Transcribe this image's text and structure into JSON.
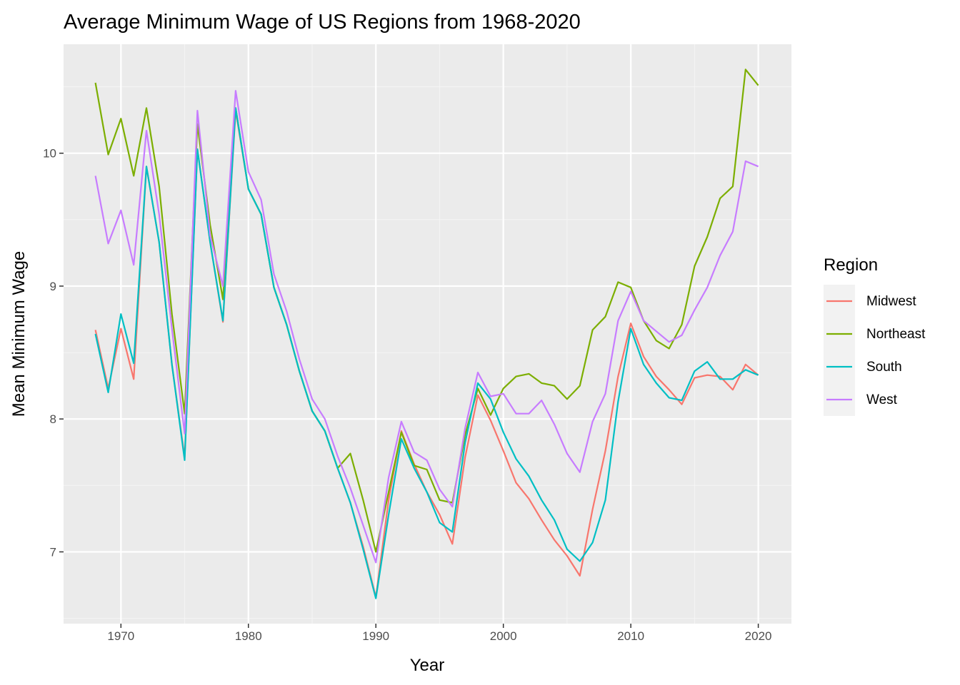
{
  "chart_data": {
    "type": "line",
    "title": "Average Minimum Wage of US Regions from 1968-2020",
    "xlabel": "Year",
    "ylabel": "Mean Minimum Wage",
    "xlim": [
      1965.5,
      2022.6
    ],
    "ylim": [
      6.46,
      10.82
    ],
    "x_ticks": [
      1970,
      1980,
      1990,
      2000,
      2010,
      2020
    ],
    "y_ticks": [
      7,
      8,
      9,
      10
    ],
    "grid": true,
    "legend": {
      "title": "Region",
      "placement": "right"
    },
    "x": [
      1968,
      1969,
      1970,
      1971,
      1972,
      1973,
      1974,
      1975,
      1976,
      1977,
      1978,
      1979,
      1980,
      1981,
      1982,
      1983,
      1984,
      1985,
      1986,
      1987,
      1988,
      1989,
      1990,
      1991,
      1992,
      1993,
      1994,
      1995,
      1996,
      1997,
      1998,
      1999,
      2000,
      2001,
      2002,
      2003,
      2004,
      2005,
      2006,
      2007,
      2008,
      2009,
      2010,
      2011,
      2012,
      2013,
      2014,
      2015,
      2016,
      2017,
      2018,
      2019,
      2020
    ],
    "series": [
      {
        "name": "Midwest",
        "color": "#F8766D",
        "values": [
          8.67,
          8.23,
          8.68,
          8.3,
          9.9,
          9.33,
          8.41,
          7.71,
          10.03,
          9.33,
          8.73,
          10.32,
          9.73,
          9.54,
          8.99,
          8.71,
          8.36,
          8.06,
          7.91,
          7.63,
          7.37,
          7.04,
          6.66,
          7.39,
          7.91,
          7.66,
          7.45,
          7.28,
          7.06,
          7.71,
          8.18,
          7.99,
          7.76,
          7.52,
          7.4,
          7.24,
          7.09,
          6.97,
          6.82,
          7.32,
          7.76,
          8.32,
          8.72,
          8.47,
          8.32,
          8.22,
          8.11,
          8.31,
          8.33,
          8.32,
          8.22,
          8.41,
          8.33
        ]
      },
      {
        "name": "Northeast",
        "color": "#7CAE00",
        "values": [
          10.53,
          9.99,
          10.26,
          9.83,
          10.34,
          9.75,
          8.79,
          8.04,
          10.22,
          9.46,
          8.9,
          10.34,
          9.73,
          9.54,
          8.99,
          8.71,
          8.36,
          8.06,
          7.91,
          7.63,
          7.74,
          7.39,
          7.0,
          7.45,
          7.9,
          7.65,
          7.62,
          7.39,
          7.37,
          7.88,
          8.23,
          8.03,
          8.23,
          8.32,
          8.34,
          8.27,
          8.25,
          8.15,
          8.25,
          8.67,
          8.77,
          9.03,
          8.99,
          8.74,
          8.59,
          8.53,
          8.71,
          9.15,
          9.37,
          9.66,
          9.75,
          10.63,
          10.51
        ]
      },
      {
        "name": "South",
        "color": "#00BFC4",
        "values": [
          8.64,
          8.2,
          8.79,
          8.42,
          9.9,
          9.33,
          8.41,
          7.69,
          10.03,
          9.33,
          8.74,
          10.34,
          9.73,
          9.54,
          8.99,
          8.71,
          8.36,
          8.06,
          7.91,
          7.63,
          7.37,
          7.02,
          6.65,
          7.28,
          7.85,
          7.63,
          7.45,
          7.22,
          7.15,
          7.82,
          8.27,
          8.15,
          7.9,
          7.7,
          7.57,
          7.39,
          7.24,
          7.02,
          6.93,
          7.07,
          7.39,
          8.13,
          8.68,
          8.41,
          8.27,
          8.16,
          8.14,
          8.36,
          8.43,
          8.3,
          8.3,
          8.37,
          8.33
        ]
      },
      {
        "name": "West",
        "color": "#C77CFF",
        "values": [
          9.83,
          9.32,
          9.57,
          9.16,
          10.17,
          9.54,
          8.68,
          7.89,
          10.32,
          9.38,
          9.0,
          10.47,
          9.86,
          9.65,
          9.09,
          8.81,
          8.45,
          8.15,
          8.0,
          7.72,
          7.48,
          7.2,
          6.92,
          7.56,
          7.98,
          7.75,
          7.69,
          7.47,
          7.34,
          7.93,
          8.35,
          8.17,
          8.19,
          8.04,
          8.04,
          8.14,
          7.96,
          7.74,
          7.6,
          7.98,
          8.19,
          8.74,
          8.96,
          8.74,
          8.66,
          8.58,
          8.63,
          8.82,
          8.99,
          9.23,
          9.41,
          9.94,
          9.9
        ]
      }
    ]
  }
}
